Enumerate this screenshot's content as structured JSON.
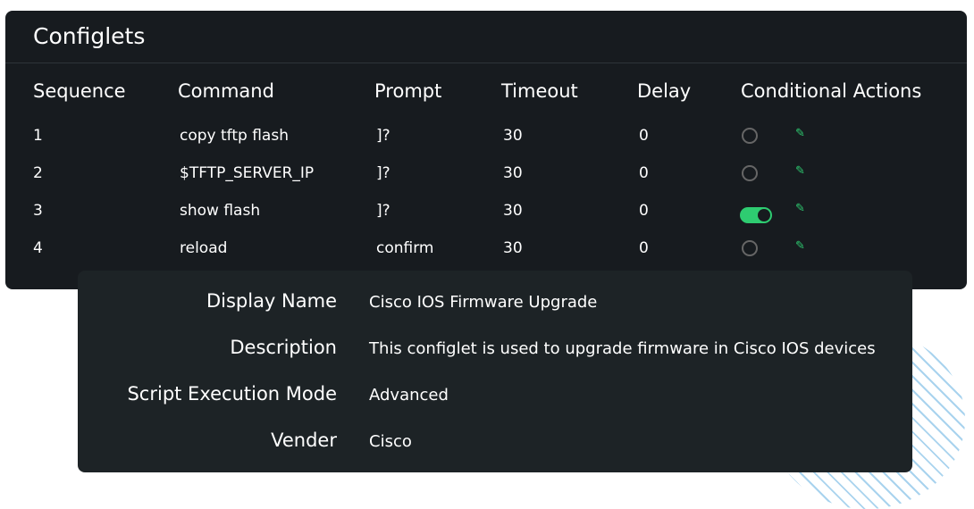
{
  "title": "Configlets",
  "columns": [
    "Sequence",
    "Command",
    "Prompt",
    "Timeout",
    "Delay",
    "Conditional Actions"
  ],
  "rows": [
    {
      "seq": "1",
      "command": "copy tftp flash",
      "prompt": "]?",
      "timeout": "30",
      "delay": "0",
      "conditional": false
    },
    {
      "seq": "2",
      "command": "$TFTP_SERVER_IP",
      "prompt": "]?",
      "timeout": "30",
      "delay": "0",
      "conditional": false
    },
    {
      "seq": "3",
      "command": "show flash",
      "prompt": "]?",
      "timeout": "30",
      "delay": "0",
      "conditional": true
    },
    {
      "seq": "4",
      "command": "reload",
      "prompt": "confirm",
      "timeout": "30",
      "delay": "0",
      "conditional": false
    }
  ],
  "details": [
    {
      "label": "Display Name",
      "value": "Cisco IOS Firmware Upgrade"
    },
    {
      "label": "Description",
      "value": "This configlet is used to upgrade firmware in Cisco IOS devices"
    },
    {
      "label": "Script Execution Mode",
      "value": "Advanced"
    },
    {
      "label": "Vender",
      "value": "Cisco"
    }
  ],
  "colors": {
    "accent": "#2ecc71",
    "panel": "#171b1f",
    "card": "#1d2326"
  },
  "icons": {
    "edit": "pencil-icon"
  }
}
